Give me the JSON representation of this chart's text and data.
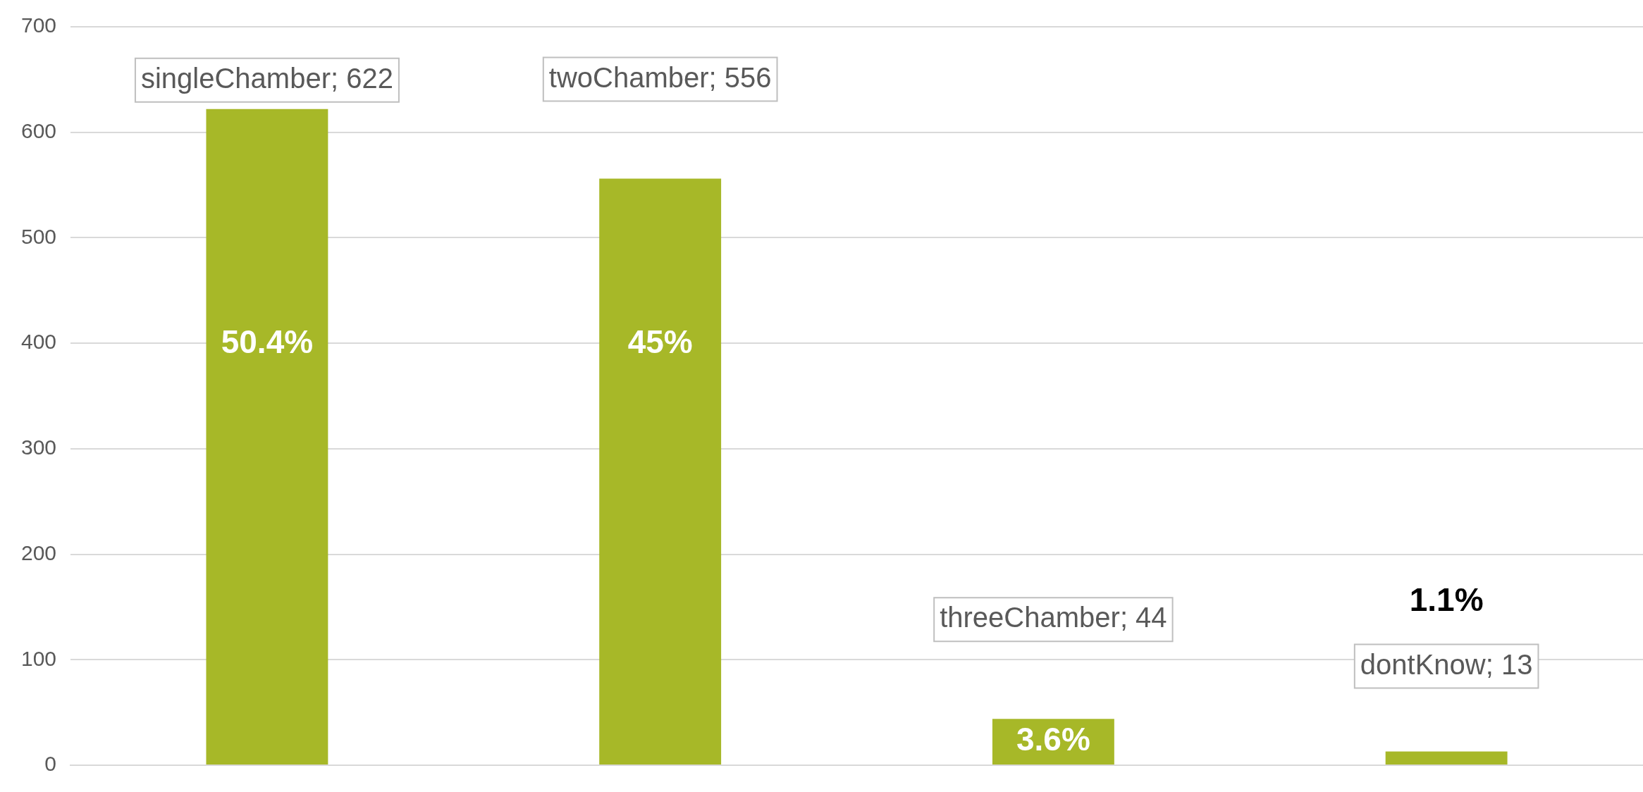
{
  "chart_data": {
    "type": "bar",
    "categories": [
      null,
      null,
      null,
      null
    ],
    "values": [
      622,
      556,
      44,
      13
    ],
    "value_labels": [
      "singleChamber; 622",
      "twoChamber; 556",
      "threeChamber; 44",
      "dontKnow; 13"
    ],
    "annotations": [
      "50.4%",
      "45%",
      "3.6%",
      "1.1%"
    ],
    "color": "#a7b828",
    "ylim": [
      0,
      700
    ],
    "yticks": [
      0,
      100,
      200,
      300,
      400,
      500,
      600,
      700
    ],
    "grid": "y"
  }
}
